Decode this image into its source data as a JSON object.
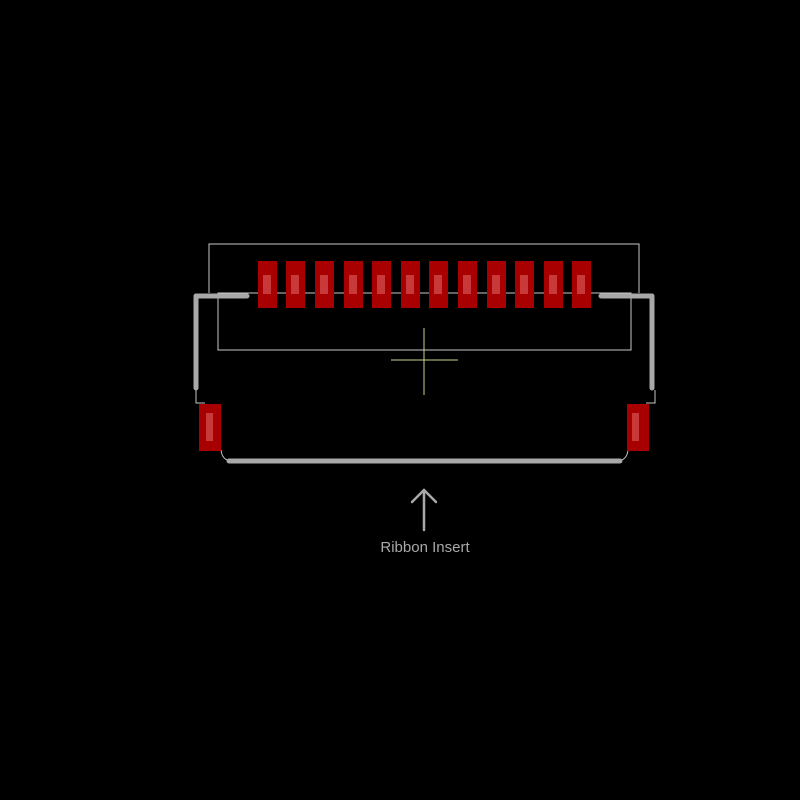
{
  "footprint": {
    "label": "Ribbon Insert",
    "pin_count": 12,
    "mount_pad_count": 2
  },
  "colors": {
    "background": "#000000",
    "pad_fill": "#a80000",
    "pad_highlight": "#c83a3a",
    "silkscreen": "#a8a8a8",
    "outline": "#c8c8c8",
    "origin_cross": "#c8d48a",
    "label": "#a8a8a8"
  }
}
